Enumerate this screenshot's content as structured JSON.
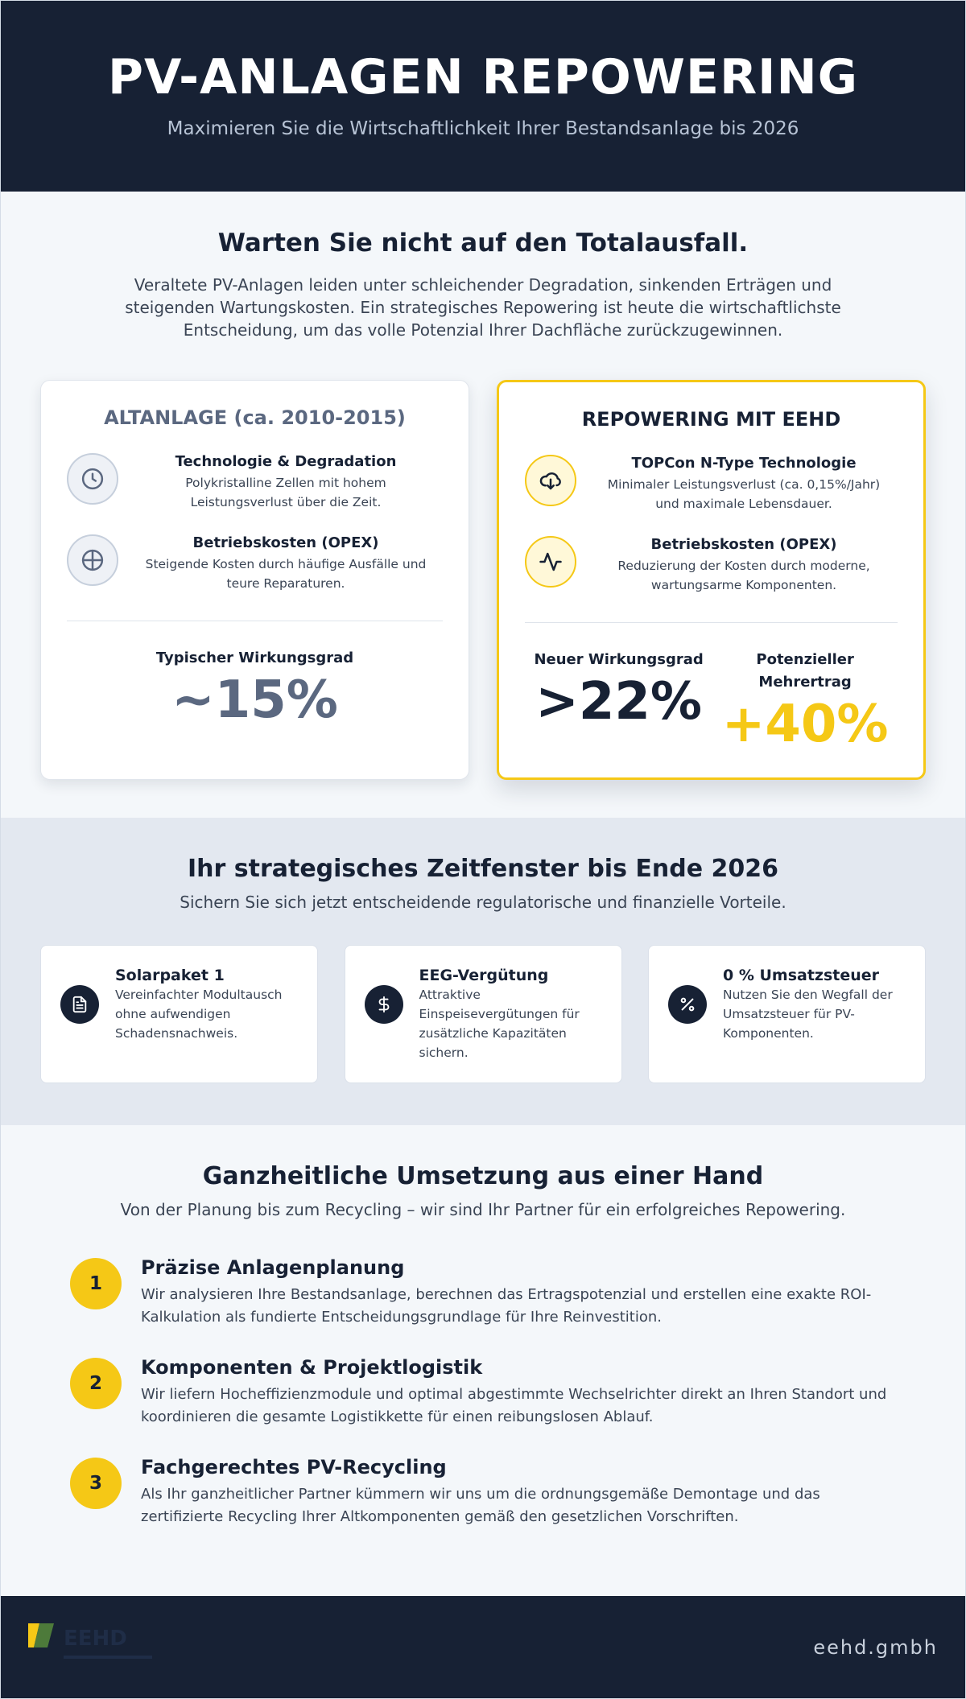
{
  "header": {
    "title": "PV-ANLAGEN REPOWERING",
    "subtitle": "Maximieren Sie die Wirtschaftlichkeit Ihrer Bestandsanlage bis 2026"
  },
  "intro": {
    "title": "Warten Sie nicht auf den Totalausfall.",
    "text": "Veraltete PV-Anlagen leiden unter schleichender Degradation, sinkenden Erträgen und steigenden Wartungskosten. Ein strategisches Repowering ist heute die wirtschaftlichste Entscheidung, um das volle Potenzial Ihrer Dachfläche zurückzugewinnen."
  },
  "old_card": {
    "title": "ALTANLAGE (ca. 2010-2015)",
    "features": [
      {
        "title": "Technologie & Degradation",
        "desc": "Polykristalline Zellen mit hohem Leistungsverlust über die Zeit.",
        "icon": "clock-icon"
      },
      {
        "title": "Betriebskosten (OPEX)",
        "desc": "Steigende Kosten durch häufige Ausfälle und teure Reparaturen.",
        "icon": "crosshair-icon"
      }
    ],
    "stat_label": "Typischer Wirkungsgrad",
    "stat_value": "~15%"
  },
  "new_card": {
    "title": "REPOWERING MIT EEHD",
    "features": [
      {
        "title": "TOPCon N-Type Technologie",
        "desc": "Minimaler Leistungsverlust (ca. 0,15%/Jahr) und maximale Lebensdauer.",
        "icon": "cloud-download-icon"
      },
      {
        "title": "Betriebskosten (OPEX)",
        "desc": "Reduzierung der Kosten durch moderne, wartungsarme Komponenten.",
        "icon": "activity-icon"
      }
    ],
    "stat1_label": "Neuer Wirkungsgrad",
    "stat1_value": ">22%",
    "stat2_label_line1": "Potenzieller",
    "stat2_label_line2": "Mehrertrag",
    "stat2_value": "+40%"
  },
  "timeframe": {
    "title": "Ihr strategisches Zeitfenster bis Ende 2026",
    "subtitle": "Sichern Sie sich jetzt entscheidende regulatorische und finanzielle Vorteile.",
    "cards": [
      {
        "title": "Solarpaket 1",
        "desc": "Vereinfachter Modultausch ohne aufwendigen Schadensnachweis.",
        "icon": "document-icon"
      },
      {
        "title": "EEG-Vergütung",
        "desc": "Attraktive Einspeisevergütungen für zusätzliche Kapazitäten sichern.",
        "icon": "dollar-icon"
      },
      {
        "title": "0 % Umsatzsteuer",
        "desc": "Nutzen Sie den Wegfall der Umsatzsteuer für PV-Komponenten.",
        "icon": "percent-icon"
      }
    ]
  },
  "implementation": {
    "title": "Ganzheitliche Umsetzung aus einer Hand",
    "subtitle": "Von der Planung bis zum Recycling – wir sind Ihr Partner für ein erfolgreiches Repowering.",
    "steps": [
      {
        "num": "1",
        "title": "Präzise Anlagenplanung",
        "desc": "Wir analysieren Ihre Bestandsanlage, berechnen das Ertragspotenzial und erstellen eine exakte ROI-Kalkulation als fundierte Entscheidungsgrundlage für Ihre Reinvestition."
      },
      {
        "num": "2",
        "title": "Komponenten & Projektlogistik",
        "desc": "Wir liefern Hocheffizienzmodule und optimal abgestimmte Wechselrichter direkt an Ihren Standort und koordinieren die gesamte Logistikkette für einen reibungslosen Ablauf."
      },
      {
        "num": "3",
        "title": "Fachgerechtes PV-Recycling",
        "desc": "Als Ihr ganzheitlicher Partner kümmern wir uns um die ordnungsgemäße Demontage und das zertifizierte Recycling Ihrer Altkomponenten gemäß den gesetzlichen Vorschriften."
      }
    ]
  },
  "footer": {
    "brand": "eehd.gmbh",
    "logo_text": "EEHD"
  },
  "colors": {
    "navy": "#172134",
    "gold": "#f5c816",
    "slate": "#5b6880",
    "light_bg": "#f4f7fa",
    "band_bg": "#e3e8f0"
  }
}
